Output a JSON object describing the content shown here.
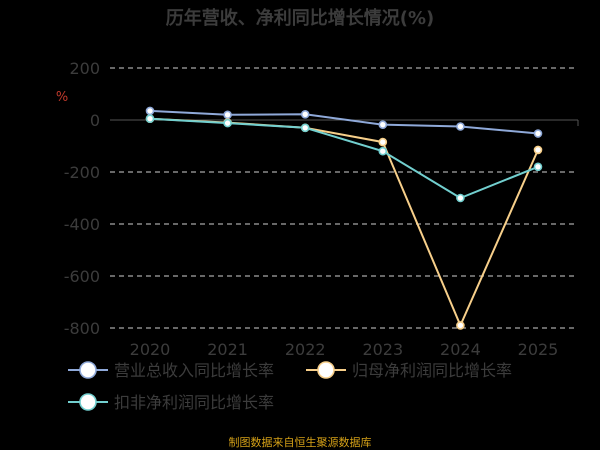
{
  "chart_data": {
    "type": "line",
    "title": "历年营收、净利同比增长情况(%)",
    "ylabel": "%",
    "categories": [
      "2020",
      "2021",
      "2022",
      "2023",
      "2024",
      "2025"
    ],
    "ylim": [
      -800,
      200
    ],
    "yticks": [
      200,
      0,
      -200,
      -400,
      -600,
      -800
    ],
    "grid": true,
    "legend_position": "bottom",
    "series": [
      {
        "name": "营业总收入同比增长率",
        "values": [
          35,
          20,
          22,
          -18,
          -25,
          -52
        ],
        "color": "#8fa9d9"
      },
      {
        "name": "归母净利润同比增长率",
        "values": [
          5,
          -10,
          -30,
          -85,
          -790,
          -115
        ],
        "color": "#f7cf8a"
      },
      {
        "name": "扣非净利润同比增长率",
        "values": [
          5,
          -12,
          -30,
          -120,
          -300,
          -180
        ],
        "color": "#72cfcf"
      }
    ],
    "source": "制图数据来自恒生聚源数据库"
  }
}
